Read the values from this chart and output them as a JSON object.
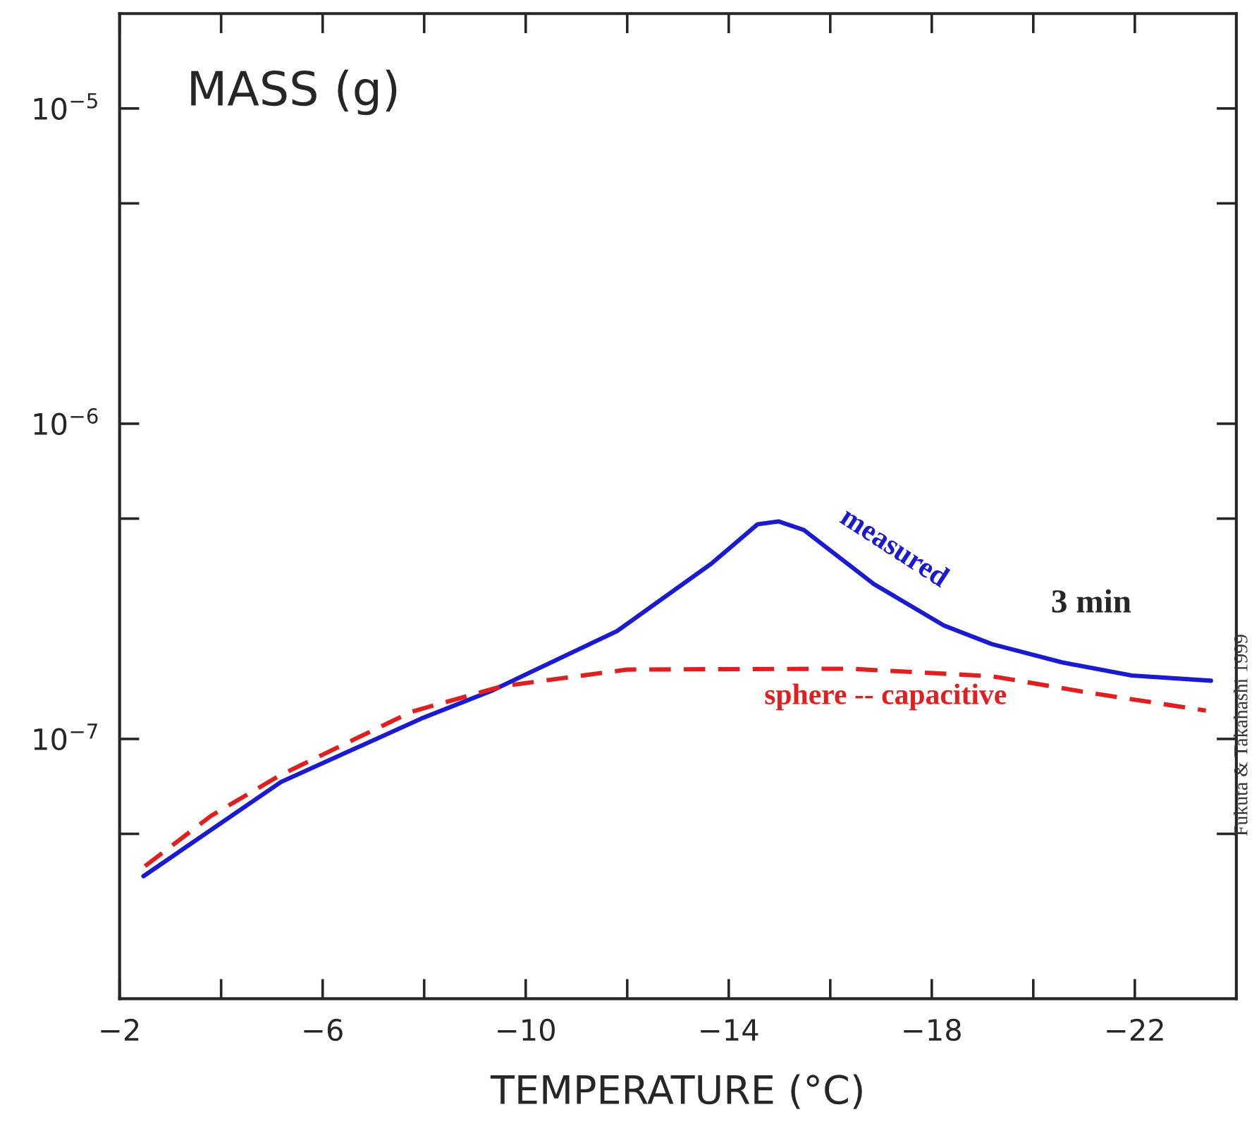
{
  "chart_data": {
    "type": "line",
    "xlabel": "TEMPERATURE (°C)",
    "ylabel": "MASS (g)",
    "log": "y",
    "xlim": [
      -2,
      -24
    ],
    "ylim": [
      1.5e-08,
      2e-05
    ],
    "xticks": [
      -2,
      {
        "value": -4,
        "label": null
      },
      -6,
      {
        "value": -8,
        "label": null
      },
      -10,
      {
        "value": -12,
        "label": null
      },
      -14,
      {
        "value": -16,
        "label": null
      },
      -18,
      {
        "value": -20,
        "label": null
      },
      -22
    ],
    "yticks": [
      {
        "value": 5e-08,
        "label": null
      },
      {
        "value": 1e-07,
        "label": "10$^{−7}$"
      },
      {
        "value": 5e-07,
        "label": null
      },
      {
        "value": 1e-06,
        "label": "10$^{−6}$"
      },
      {
        "value": 5e-06,
        "label": null
      },
      {
        "value": 1e-05,
        "label": "10$^{−5}$"
      }
    ],
    "grid": false,
    "legend": false,
    "marker": "none",
    "series": [
      {
        "name": "measured",
        "color": "#1a1ad0",
        "line_style": "solid",
        "x": [
          -2.47,
          -5.18,
          -7.94,
          -9.32,
          -11.8,
          -13.66,
          -14.57,
          -14.98,
          -15.48,
          -16.86,
          -18.24,
          -19.18,
          -20.56,
          -21.94,
          -23.5
        ],
        "values": [
          3.67e-08,
          7.3e-08,
          1.16e-07,
          1.42e-07,
          2.2e-07,
          3.6e-07,
          4.8e-07,
          4.9e-07,
          4.6e-07,
          3.1e-07,
          2.29e-07,
          2e-07,
          1.75e-07,
          1.59e-07,
          1.53e-07
        ]
      },
      {
        "name": "sphere -- capacitive",
        "color": "#e02020",
        "line_style": "dashed",
        "x": [
          -2.5,
          -3.8,
          -5.18,
          -7.75,
          -9.54,
          -12.0,
          -16.4,
          -19.2,
          -21.0,
          -23.4
        ],
        "values": [
          3.95e-08,
          5.7e-08,
          7.7e-08,
          1.22e-07,
          1.47e-07,
          1.66e-07,
          1.67e-07,
          1.58e-07,
          1.41e-07,
          1.23e-07
        ]
      }
    ],
    "annotations": [
      "3 min",
      "Fukuta & Takahashi 1999"
    ]
  }
}
